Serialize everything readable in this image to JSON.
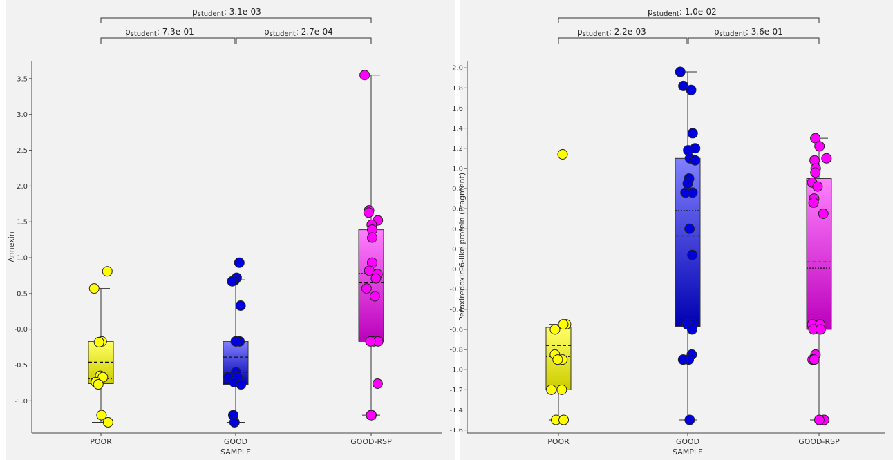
{
  "chart_data": [
    {
      "type": "box",
      "ylabel": "Annexin",
      "xlabel": "SAMPLE",
      "ylim": [
        -1.45,
        3.75
      ],
      "yticks": [
        -1.0,
        -0.5,
        0.0,
        0.5,
        1.0,
        1.5,
        2.0,
        2.5,
        3.0,
        3.5
      ],
      "ytick_labels": [
        "-1.0",
        "-0.5",
        "-0.0",
        "0.5",
        "1.0",
        "1.5",
        "2.0",
        "2.5",
        "3.0",
        "3.5"
      ],
      "categories": [
        "POOR",
        "GOOD",
        "GOOD-RSP"
      ],
      "groups": [
        {
          "category": "POOR",
          "color_top": "#ffff66",
          "color_bottom": "#cccc00",
          "dot_color": "#ffff00",
          "whisker_low": -1.3,
          "q1": -0.76,
          "mean": -0.46,
          "median": -0.69,
          "q3": -0.17,
          "whisker_high": 0.57,
          "points": [
            0.81,
            0.57,
            -0.17,
            -0.18,
            -0.65,
            -0.67,
            -0.74,
            -0.77,
            -1.2,
            -1.3
          ]
        },
        {
          "category": "GOOD",
          "color_top": "#8080ff",
          "color_bottom": "#0000b0",
          "dot_color": "#0000dd",
          "whisker_low": -1.3,
          "q1": -0.77,
          "mean": -0.39,
          "median": -0.6,
          "q3": -0.17,
          "whisker_high": 0.69,
          "points": [
            0.93,
            0.72,
            0.69,
            0.67,
            0.33,
            -0.17,
            -0.17,
            -0.17,
            -0.6,
            -0.67,
            -0.67,
            -0.67,
            -0.74,
            -0.77,
            -1.2,
            -1.3
          ]
        },
        {
          "category": "GOOD-RSP",
          "color_top": "#ff80ff",
          "color_bottom": "#bb00bb",
          "dot_color": "#ff00ff",
          "whisker_low": -1.2,
          "q1": -0.17,
          "mean": 0.65,
          "median": 0.78,
          "q3": 1.39,
          "whisker_high": 3.55,
          "points": [
            3.55,
            1.66,
            1.63,
            1.52,
            1.46,
            1.39,
            1.28,
            0.93,
            0.93,
            0.82,
            0.77,
            0.71,
            0.57,
            0.46,
            -0.17,
            -0.17,
            -0.17,
            -0.76,
            -1.2,
            -1.2,
            -1.2
          ]
        }
      ],
      "comparisons": [
        {
          "from": "POOR",
          "to": "GOOD-RSP",
          "p_label": "p",
          "p_sub": "student",
          "p_value": ": 3.1e-03"
        },
        {
          "from": "POOR",
          "to": "GOOD",
          "p_label": "p",
          "p_sub": "student",
          "p_value": ": 7.3e-01"
        },
        {
          "from": "GOOD",
          "to": "GOOD-RSP",
          "p_label": "p",
          "p_sub": "student",
          "p_value": ": 2.7e-04"
        }
      ]
    },
    {
      "type": "box",
      "ylabel": "Peroxiredoxin-6-like protein (Fragment)",
      "xlabel": "SAMPLE",
      "ylim": [
        -1.63,
        2.07
      ],
      "yticks": [
        -1.6,
        -1.4,
        -1.2,
        -1.0,
        -0.8,
        -0.6,
        -0.4,
        -0.2,
        0.0,
        0.2,
        0.4,
        0.6,
        0.8,
        1.0,
        1.2,
        1.4,
        1.6,
        1.8,
        2.0
      ],
      "ytick_labels": [
        "-1.6",
        "-1.4",
        "-1.2",
        "-1.0",
        "-0.8",
        "-0.6",
        "-0.4",
        "-0.2",
        "0.0",
        "0.2",
        "0.4",
        "0.6",
        "0.8",
        "1.0",
        "1.2",
        "1.4",
        "1.6",
        "1.8",
        "2.0"
      ],
      "categories": [
        "POOR",
        "GOOD",
        "GOOD-RSP"
      ],
      "groups": [
        {
          "category": "POOR",
          "color_top": "#ffff66",
          "color_bottom": "#cccc00",
          "dot_color": "#ffff00",
          "whisker_low": -1.5,
          "q1": -1.2,
          "mean": -0.76,
          "median": -0.87,
          "q3": -0.58,
          "whisker_high": -0.55,
          "points": [
            1.14,
            -0.55,
            -0.55,
            -0.6,
            -0.85,
            -0.9,
            -0.9,
            -1.2,
            -1.2,
            -1.5,
            -1.5
          ]
        },
        {
          "category": "GOOD",
          "color_top": "#8080ff",
          "color_bottom": "#0000b0",
          "dot_color": "#0000dd",
          "whisker_low": -1.5,
          "q1": -0.57,
          "mean": 0.33,
          "median": 0.58,
          "q3": 1.1,
          "whisker_high": 1.96,
          "points": [
            1.96,
            1.82,
            1.78,
            1.35,
            1.2,
            1.18,
            1.1,
            1.08,
            0.9,
            0.85,
            0.76,
            0.76,
            0.4,
            0.14,
            -0.55,
            -0.55,
            -0.6,
            -0.85,
            -0.9,
            -0.9,
            -1.5
          ]
        },
        {
          "category": "GOOD-RSP",
          "color_top": "#ff80ff",
          "color_bottom": "#bb00bb",
          "dot_color": "#ff00ff",
          "whisker_low": -1.5,
          "q1": -0.6,
          "mean": 0.07,
          "median": 0.01,
          "q3": 0.9,
          "whisker_high": 1.3,
          "points": [
            1.3,
            1.22,
            1.1,
            1.08,
            1.0,
            0.96,
            0.86,
            0.82,
            0.7,
            0.66,
            0.55,
            -0.55,
            -0.55,
            -0.6,
            -0.6,
            -0.85,
            -0.9,
            -0.9,
            -1.5,
            -1.5
          ]
        }
      ],
      "comparisons": [
        {
          "from": "POOR",
          "to": "GOOD-RSP",
          "p_label": "p",
          "p_sub": "student",
          "p_value": ": 1.0e-02"
        },
        {
          "from": "POOR",
          "to": "GOOD",
          "p_label": "p",
          "p_sub": "student",
          "p_value": ": 2.2e-03"
        },
        {
          "from": "GOOD",
          "to": "GOOD-RSP",
          "p_label": "p",
          "p_sub": "student",
          "p_value": ": 3.6e-01"
        }
      ]
    }
  ]
}
